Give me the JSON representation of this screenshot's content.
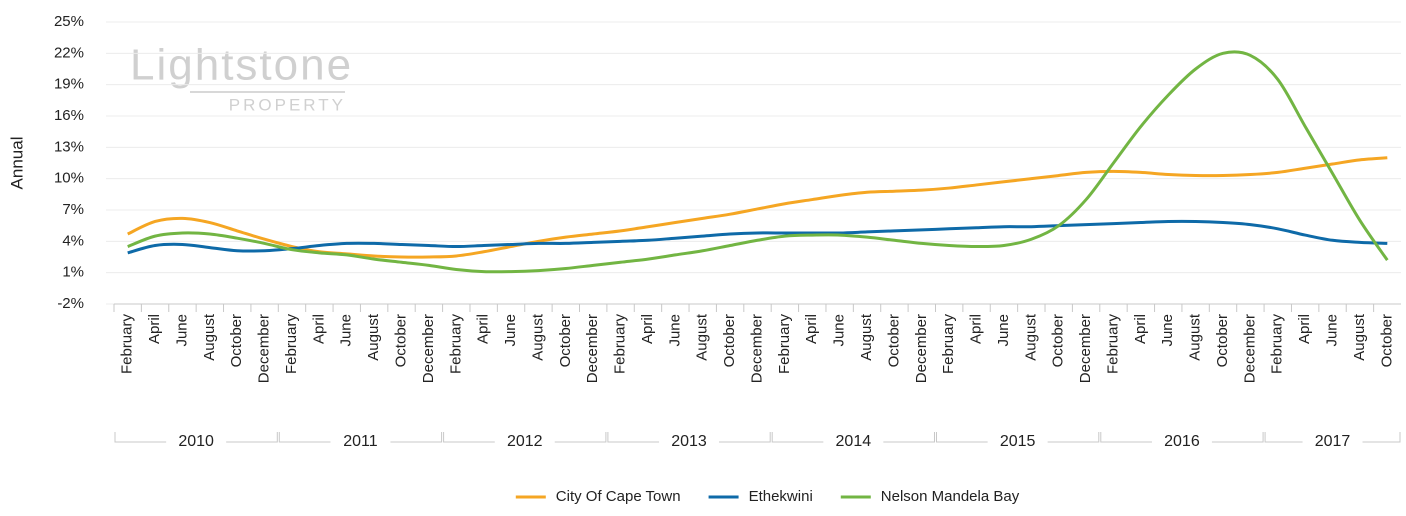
{
  "chart_data": {
    "type": "line",
    "y_label": "Annual",
    "watermark": {
      "name": "Lightstone",
      "sub": "PROPERTY"
    },
    "categories": [
      "February",
      "April",
      "June",
      "August",
      "October",
      "December",
      "February",
      "April",
      "June",
      "August",
      "October",
      "December",
      "February",
      "April",
      "June",
      "August",
      "October",
      "December",
      "February",
      "April",
      "June",
      "August",
      "October",
      "December",
      "February",
      "April",
      "June",
      "August",
      "October",
      "December",
      "February",
      "April",
      "June",
      "August",
      "October",
      "December",
      "February",
      "April",
      "June",
      "August",
      "October",
      "December",
      "February",
      "April",
      "June",
      "August",
      "October"
    ],
    "year_groups": [
      "2010",
      "2011",
      "2012",
      "2013",
      "2014",
      "2015",
      "2016",
      "2017"
    ],
    "ylim": [
      -2,
      25
    ],
    "yticks": [
      {
        "value": -2,
        "label": "-2%"
      },
      {
        "value": 1,
        "label": "1%"
      },
      {
        "value": 4,
        "label": "4%"
      },
      {
        "value": 7,
        "label": "7%"
      },
      {
        "value": 10,
        "label": "10%"
      },
      {
        "value": 13,
        "label": "13%"
      },
      {
        "value": 16,
        "label": "16%"
      },
      {
        "value": 19,
        "label": "19%"
      },
      {
        "value": 22,
        "label": "22%"
      },
      {
        "value": 25,
        "label": "25%"
      }
    ],
    "grid": true,
    "legend": "bottom",
    "series": [
      {
        "name": "City Of Cape Town",
        "color": "#f5a623",
        "values": [
          4.7,
          5.9,
          6.2,
          5.8,
          5.0,
          4.2,
          3.5,
          3.0,
          2.8,
          2.6,
          2.5,
          2.5,
          2.6,
          3.0,
          3.5,
          4.0,
          4.4,
          4.7,
          5.0,
          5.4,
          5.8,
          6.2,
          6.6,
          7.1,
          7.6,
          8.0,
          8.4,
          8.7,
          8.8,
          8.9,
          9.1,
          9.4,
          9.7,
          10.0,
          10.3,
          10.6,
          10.7,
          10.6,
          10.4,
          10.3,
          10.3,
          10.4,
          10.6,
          11.0,
          11.4,
          11.8,
          12.0
        ]
      },
      {
        "name": "Ethekwini",
        "color": "#0e6aa8",
        "values": [
          2.9,
          3.6,
          3.7,
          3.4,
          3.1,
          3.1,
          3.3,
          3.6,
          3.8,
          3.8,
          3.7,
          3.6,
          3.5,
          3.6,
          3.7,
          3.8,
          3.8,
          3.9,
          4.0,
          4.1,
          4.3,
          4.5,
          4.7,
          4.8,
          4.8,
          4.8,
          4.8,
          4.9,
          5.0,
          5.1,
          5.2,
          5.3,
          5.4,
          5.4,
          5.5,
          5.6,
          5.7,
          5.8,
          5.9,
          5.9,
          5.8,
          5.6,
          5.2,
          4.6,
          4.1,
          3.9,
          3.8
        ]
      },
      {
        "name": "Nelson Mandela Bay",
        "color": "#72b543",
        "values": [
          3.5,
          4.5,
          4.8,
          4.7,
          4.3,
          3.8,
          3.2,
          2.9,
          2.7,
          2.3,
          2.0,
          1.7,
          1.3,
          1.1,
          1.1,
          1.2,
          1.4,
          1.7,
          2.0,
          2.3,
          2.7,
          3.1,
          3.6,
          4.1,
          4.5,
          4.6,
          4.6,
          4.4,
          4.1,
          3.8,
          3.6,
          3.5,
          3.6,
          4.2,
          5.5,
          8.0,
          11.5,
          15.0,
          18.0,
          20.5,
          22.0,
          21.8,
          19.5,
          15.0,
          10.5,
          6.0,
          2.2
        ]
      }
    ]
  }
}
